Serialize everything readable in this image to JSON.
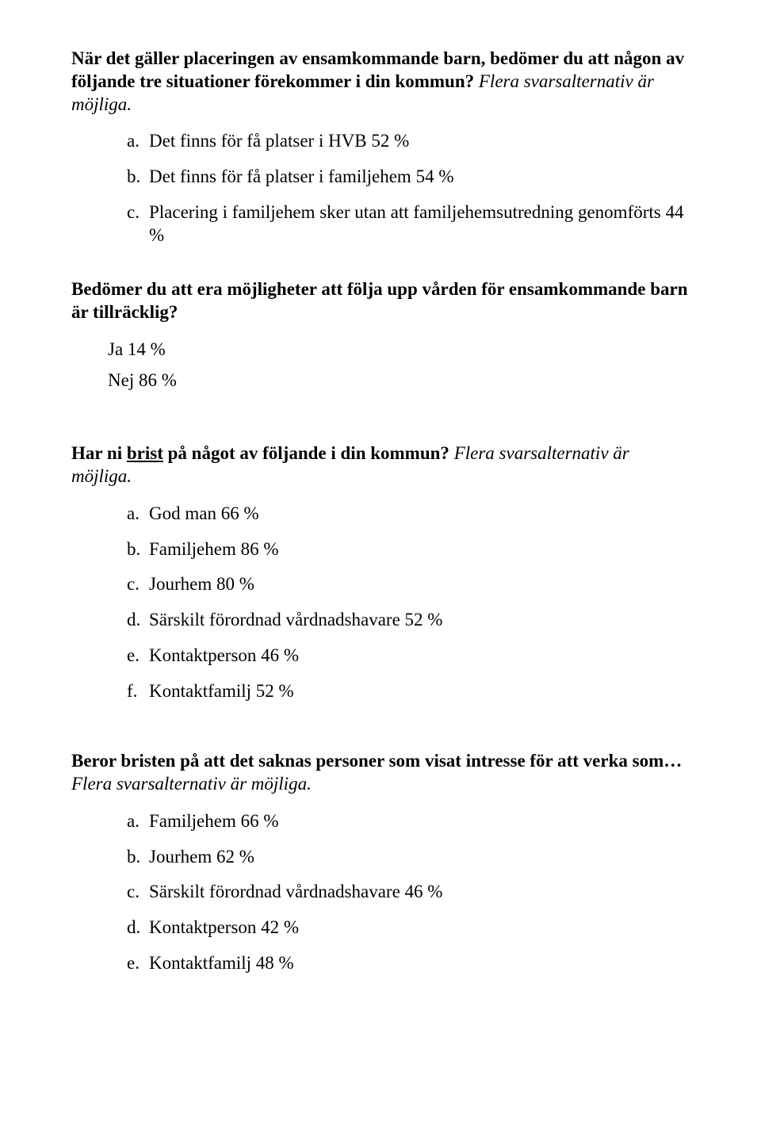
{
  "q1": {
    "text_bold": "När det gäller placeringen av ensamkommande barn, bedömer du att någon av följande tre situationer förekommer i din kommun?",
    "text_italic": " Flera svarsalternativ är möjliga.",
    "options": [
      {
        "letter": "a.",
        "text": "Det finns för få platser i HVB 52 %"
      },
      {
        "letter": "b.",
        "text": "Det finns för få platser i familjehem 54 %"
      },
      {
        "letter": "c.",
        "text": "Placering i familjehem sker utan att familjehemsutredning genomförts 44 %"
      }
    ]
  },
  "q2": {
    "text_bold": "Bedömer du att era möjligheter att följa upp vården för ensamkommande barn är tillräcklig?",
    "answers": [
      "Ja 14 %",
      "Nej 86 %"
    ]
  },
  "q3": {
    "bold_pre": "Har ni ",
    "bold_underline": "brist",
    "bold_post": " på något av följande i din kommun?",
    "italic": " Flera svarsalternativ är möjliga.",
    "options": [
      {
        "letter": "a.",
        "text": "God man 66 %"
      },
      {
        "letter": "b.",
        "text": "Familjehem 86 %"
      },
      {
        "letter": "c.",
        "text": "Jourhem 80 %"
      },
      {
        "letter": "d.",
        "text": "Särskilt förordnad vårdnadshavare 52 %"
      },
      {
        "letter": "e.",
        "text": "Kontaktperson 46 %"
      },
      {
        "letter": "f.",
        "text": "Kontaktfamilj 52 %"
      }
    ]
  },
  "q4": {
    "bold": "Beror bristen på att det saknas personer som visat intresse för att verka som…",
    "italic": " Flera svarsalternativ är möjliga.",
    "options": [
      {
        "letter": "a.",
        "text": "Familjehem 66 %"
      },
      {
        "letter": "b.",
        "text": "Jourhem 62 %"
      },
      {
        "letter": "c.",
        "text": "Särskilt förordnad vårdnadshavare 46 %"
      },
      {
        "letter": "d.",
        "text": "Kontaktperson 42 %"
      },
      {
        "letter": "e.",
        "text": "Kontaktfamilj 48 %"
      }
    ]
  }
}
